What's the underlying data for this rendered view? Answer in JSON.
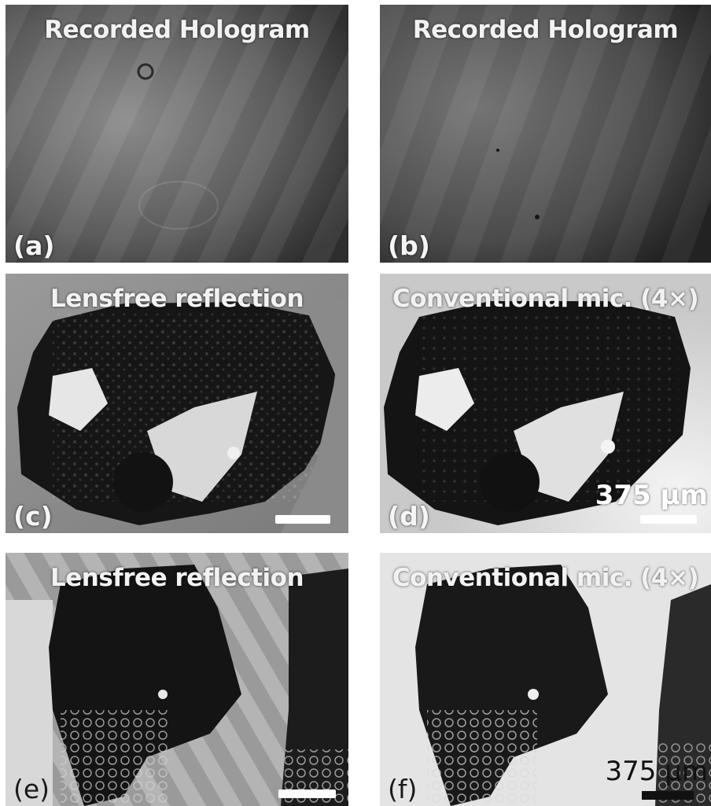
{
  "panels": {
    "a": {
      "title": "Recorded Hologram",
      "label": "(a)"
    },
    "b": {
      "title": "Recorded Hologram",
      "label": "(b)"
    },
    "c": {
      "title": "Lensfree reflection",
      "label": "(c)"
    },
    "d": {
      "title": "Conventional mic. (4×)",
      "label": "(d)",
      "scale_text": "375 μm"
    },
    "e": {
      "title": "Lensfree reflection",
      "label": "(e)"
    },
    "f": {
      "title": "Conventional mic. (4×)",
      "label": "(f)",
      "scale_text": "375 μm"
    }
  },
  "colors": {
    "hologram_bg": "#5e5e5e",
    "tissue": "#141414",
    "substrate_gray": "#8c8c8c",
    "substrate_light": "#e8e8e8"
  }
}
